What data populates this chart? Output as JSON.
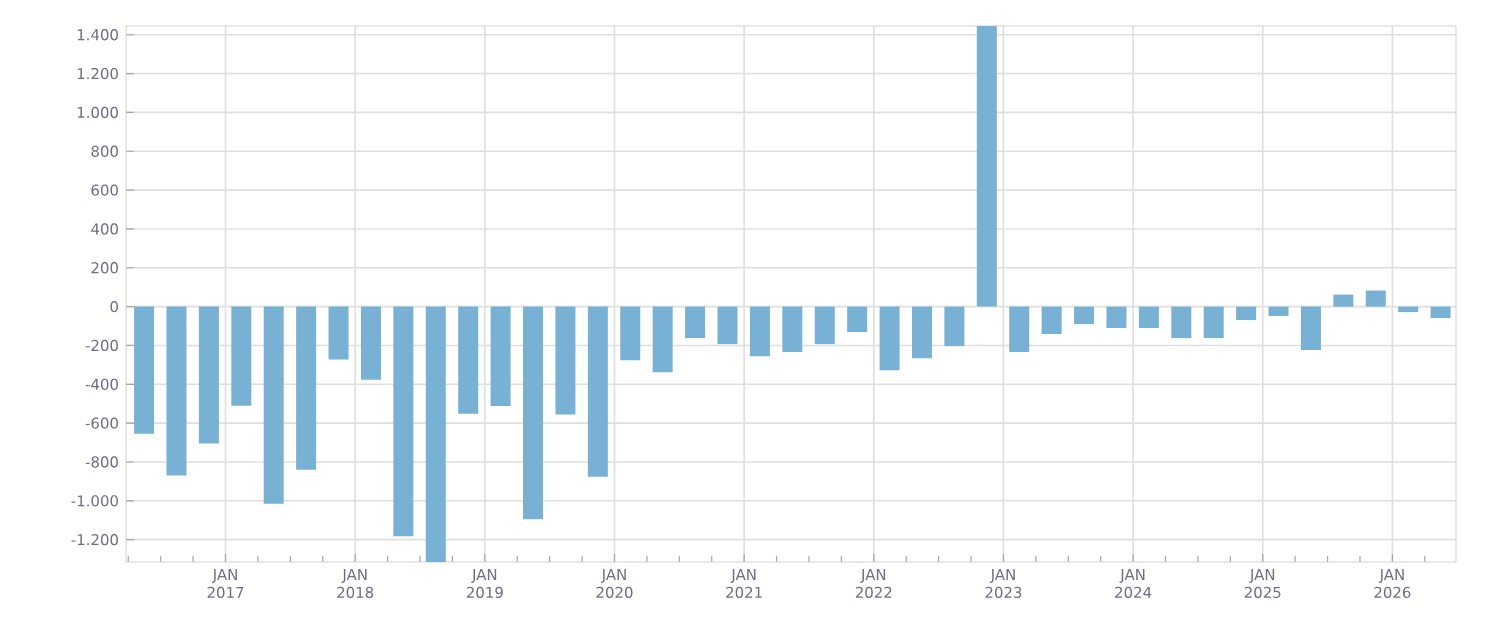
{
  "chart_data": {
    "type": "bar",
    "color": "#78b1d3",
    "grid": true,
    "x": [
      "2016-05-15",
      "2016-08-15",
      "2016-11-15",
      "2017-02-15",
      "2017-05-15",
      "2017-08-15",
      "2017-11-15",
      "2018-02-15",
      "2018-05-15",
      "2018-08-15",
      "2018-11-15",
      "2019-02-15",
      "2019-05-15",
      "2019-08-15",
      "2019-11-15",
      "2020-02-15",
      "2020-05-15",
      "2020-08-15",
      "2020-11-15",
      "2021-02-15",
      "2021-05-15",
      "2021-08-15",
      "2021-11-15",
      "2022-02-15",
      "2022-05-15",
      "2022-08-15",
      "2022-11-15",
      "2023-02-15",
      "2023-05-15",
      "2023-08-15",
      "2023-11-15",
      "2024-02-15",
      "2024-05-15",
      "2024-08-15",
      "2024-11-15",
      "2025-02-15",
      "2025-05-15",
      "2025-08-15",
      "2025-11-15",
      "2026-02-15",
      "2026-05-15"
    ],
    "values": [
      -655,
      -870,
      -705,
      -510,
      -1015,
      -840,
      -272,
      -376,
      -1183,
      -1315,
      -552,
      -512,
      -1095,
      -555,
      -876,
      -276,
      -338,
      -162,
      -193,
      -255,
      -234,
      -193,
      -131,
      -328,
      -266,
      -203,
      1445,
      -234,
      -141,
      -90,
      -110,
      -110,
      -162,
      -162,
      -69,
      -48,
      -224,
      62,
      83,
      -28,
      -59
    ],
    "xlim": [
      "2016-03-25",
      "2026-06-28"
    ],
    "xticks": [
      {
        "value": "2016-04",
        "label": null
      },
      {
        "value": "2016-07",
        "label": null
      },
      {
        "value": "2016-10",
        "label": null
      },
      {
        "value": "2017-01",
        "label": "JAN 2017"
      },
      {
        "value": "2017-04",
        "label": null
      },
      {
        "value": "2017-07",
        "label": null
      },
      {
        "value": "2017-10",
        "label": null
      },
      {
        "value": "2018-01",
        "label": "JAN 2018"
      },
      {
        "value": "2018-04",
        "label": null
      },
      {
        "value": "2018-07",
        "label": null
      },
      {
        "value": "2018-10",
        "label": null
      },
      {
        "value": "2019-01",
        "label": "JAN 2019"
      },
      {
        "value": "2019-04",
        "label": null
      },
      {
        "value": "2019-07",
        "label": null
      },
      {
        "value": "2019-10",
        "label": null
      },
      {
        "value": "2020-01",
        "label": "JAN 2020"
      },
      {
        "value": "2020-04",
        "label": null
      },
      {
        "value": "2020-07",
        "label": null
      },
      {
        "value": "2020-10",
        "label": null
      },
      {
        "value": "2021-01",
        "label": "JAN 2021"
      },
      {
        "value": "2021-04",
        "label": null
      },
      {
        "value": "2021-07",
        "label": null
      },
      {
        "value": "2021-10",
        "label": null
      },
      {
        "value": "2022-01",
        "label": "JAN 2022"
      },
      {
        "value": "2022-04",
        "label": null
      },
      {
        "value": "2022-07",
        "label": null
      },
      {
        "value": "2022-10",
        "label": null
      },
      {
        "value": "2023-01",
        "label": "JAN 2023"
      },
      {
        "value": "2023-04",
        "label": null
      },
      {
        "value": "2023-07",
        "label": null
      },
      {
        "value": "2023-10",
        "label": null
      },
      {
        "value": "2024-01",
        "label": "JAN 2024"
      },
      {
        "value": "2024-04",
        "label": null
      },
      {
        "value": "2024-07",
        "label": null
      },
      {
        "value": "2024-10",
        "label": null
      },
      {
        "value": "2025-01",
        "label": "JAN 2025"
      },
      {
        "value": "2025-04",
        "label": null
      },
      {
        "value": "2025-07",
        "label": null
      },
      {
        "value": "2025-10",
        "label": null
      },
      {
        "value": "2026-01",
        "label": "JAN 2026"
      },
      {
        "value": "2026-04",
        "label": null
      }
    ],
    "ylim": [
      -1315,
      1445
    ],
    "yticks": [
      {
        "value": -1200,
        "label": "-1.200"
      },
      {
        "value": -1000,
        "label": "-1.000"
      },
      {
        "value": -800,
        "label": "-800"
      },
      {
        "value": -600,
        "label": "-600"
      },
      {
        "value": -400,
        "label": "-400"
      },
      {
        "value": -200,
        "label": "-200"
      },
      {
        "value": 0,
        "label": "0"
      },
      {
        "value": 200,
        "label": "200"
      },
      {
        "value": 400,
        "label": "400"
      },
      {
        "value": 600,
        "label": "600"
      },
      {
        "value": 800,
        "label": "800"
      },
      {
        "value": 1000,
        "label": "1.000"
      },
      {
        "value": 1200,
        "label": "1.200"
      },
      {
        "value": 1400,
        "label": "1.400"
      }
    ]
  }
}
